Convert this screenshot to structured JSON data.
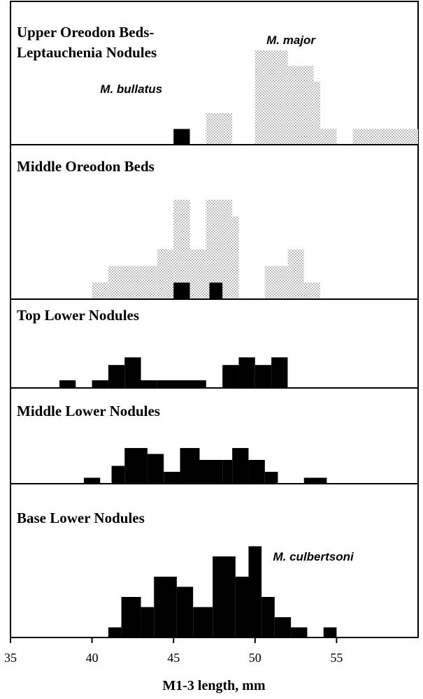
{
  "chart_data": {
    "type": "bar",
    "xlabel": "M1-3 length, mm",
    "xlim": [
      35,
      60
    ],
    "xticks": [
      35,
      40,
      45,
      50,
      55
    ],
    "colors": {
      "solid": "#000000",
      "stipple": "#8a8a8a",
      "background": "#ffffff"
    },
    "panels": [
      {
        "title_lines": [
          "Upper Oreodon Beds-",
          "Leptauchenia Nodules"
        ],
        "ymax": 6,
        "annotations": [
          {
            "text": "M. major",
            "x": 50.7,
            "y": 6.4
          },
          {
            "text": "M. bullatus",
            "x": 40.5,
            "y": 3.3
          }
        ],
        "series": [
          {
            "name": "M. bullatus",
            "style": "solid",
            "bins": [
              [
                45,
                46,
                1
              ]
            ]
          },
          {
            "name": "M. major",
            "style": "stipple",
            "bins": [
              [
                45,
                46,
                1
              ],
              [
                47,
                48.6,
                2
              ],
              [
                50,
                52,
                6
              ],
              [
                52,
                53.6,
                5
              ],
              [
                53.6,
                54,
                4
              ],
              [
                54,
                55,
                1
              ],
              [
                56,
                60,
                1
              ]
            ]
          }
        ]
      },
      {
        "title_lines": [
          "Middle Oreodon Beds"
        ],
        "ymax": 7,
        "annotations": [],
        "series": [
          {
            "name": "solid",
            "style": "solid",
            "bins": [
              [
                45,
                46,
                1
              ],
              [
                47.2,
                48,
                1
              ]
            ]
          },
          {
            "name": "stipple",
            "style": "stipple",
            "bins": [
              [
                40,
                41,
                1
              ],
              [
                41,
                42,
                2
              ],
              [
                42,
                44,
                2
              ],
              [
                44,
                45,
                3
              ],
              [
                45,
                46,
                6
              ],
              [
                46,
                47,
                3
              ],
              [
                47,
                48.6,
                6
              ],
              [
                48.6,
                49,
                5
              ],
              [
                50.6,
                51,
                2
              ],
              [
                51,
                52,
                2
              ],
              [
                52,
                53,
                3
              ],
              [
                53,
                54,
                1
              ]
            ]
          }
        ]
      },
      {
        "title_lines": [
          "Top Lower Nodules"
        ],
        "ymax": 6.4,
        "annotations": [],
        "series": [
          {
            "name": "solid",
            "style": "solid",
            "bins": [
              [
                38,
                39,
                1
              ],
              [
                40,
                41,
                1
              ],
              [
                41,
                42,
                3
              ],
              [
                42,
                43,
                4
              ],
              [
                43,
                44,
                1
              ],
              [
                44,
                46,
                1
              ],
              [
                46,
                47,
                1
              ],
              [
                48,
                49,
                3
              ],
              [
                49,
                50,
                4
              ],
              [
                50,
                51,
                3
              ],
              [
                51,
                52,
                4
              ]
            ]
          }
        ]
      },
      {
        "title_lines": [
          "Middle Lower Nodules"
        ],
        "ymax": 4.7,
        "annotations": [],
        "series": [
          {
            "name": "solid",
            "style": "solid",
            "bins": [
              [
                39.5,
                40.5,
                0.5
              ],
              [
                41.2,
                42,
                1.5
              ],
              [
                42,
                43.4,
                3
              ],
              [
                43.4,
                44.4,
                2.5
              ],
              [
                44.4,
                45.4,
                1
              ],
              [
                45.4,
                46.6,
                3
              ],
              [
                46.6,
                48,
                2
              ],
              [
                48,
                48.6,
                2
              ],
              [
                48.6,
                49.6,
                3
              ],
              [
                49.6,
                50.6,
                2
              ],
              [
                50.6,
                51.4,
                1
              ],
              [
                53,
                54.4,
                0.5
              ]
            ]
          }
        ]
      },
      {
        "title_lines": [
          "Base Lower Nodules"
        ],
        "ymax": 12,
        "annotations": [
          {
            "text": "M. culbertsoni",
            "x": 51.1,
            "y": 7.6
          }
        ],
        "series": [
          {
            "name": "M. culbertsoni",
            "style": "solid",
            "bins": [
              [
                41,
                41.8,
                1
              ],
              [
                41.8,
                43,
                4
              ],
              [
                43,
                43.8,
                3
              ],
              [
                43.8,
                45.2,
                6
              ],
              [
                45.2,
                46.2,
                5
              ],
              [
                46.2,
                47.4,
                3
              ],
              [
                47.4,
                48.8,
                8
              ],
              [
                48.8,
                49.6,
                6
              ],
              [
                49.6,
                50.4,
                9
              ],
              [
                50.4,
                51.2,
                4
              ],
              [
                51.2,
                52.2,
                2
              ],
              [
                52.2,
                53.2,
                1
              ],
              [
                54.2,
                55,
                1
              ]
            ]
          }
        ]
      }
    ]
  }
}
